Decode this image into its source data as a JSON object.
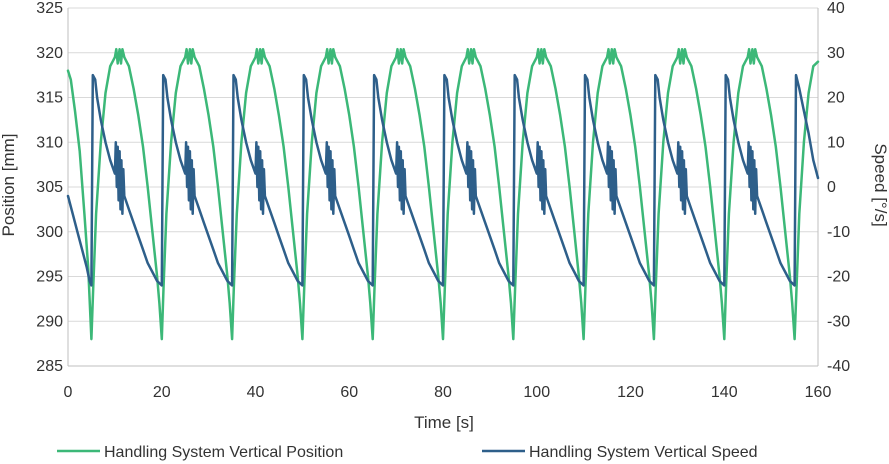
{
  "chart_data": {
    "type": "line",
    "title": "",
    "xlabel": "Time [s]",
    "ylabel_left": "Position [mm]",
    "ylabel_right": "Speed [°/s]",
    "xlim": [
      0,
      160
    ],
    "ylim_left": [
      285,
      325
    ],
    "ylim_right": [
      -40,
      40
    ],
    "x_ticks": [
      "0",
      "20",
      "40",
      "60",
      "80",
      "100",
      "120",
      "140",
      "160"
    ],
    "y_left_ticks": [
      "285",
      "290",
      "295",
      "300",
      "305",
      "310",
      "315",
      "320",
      "325"
    ],
    "y_right_ticks": [
      "-40",
      "-30",
      "-20",
      "-10",
      "0",
      "10",
      "20",
      "30",
      "40"
    ],
    "grid": true,
    "legend_position": "bottom",
    "cycle_period": 15,
    "series": [
      {
        "name": "Handling System Vertical Position",
        "axis": "left",
        "color": "#3cb878",
        "cycle_start": 5,
        "cycle_count": 11,
        "cycle_shape": [
          [
            0,
            288
          ],
          [
            0.4,
            294
          ],
          [
            1.0,
            302
          ],
          [
            2.0,
            310
          ],
          [
            3.0,
            315.5
          ],
          [
            4.0,
            318.5
          ],
          [
            5.0,
            319.5
          ],
          [
            5.3,
            320.4
          ],
          [
            5.6,
            318.8
          ],
          [
            6.0,
            320.4
          ],
          [
            6.3,
            318.8
          ],
          [
            6.6,
            320.4
          ],
          [
            7.0,
            319.5
          ],
          [
            8.0,
            318.5
          ],
          [
            9.0,
            316
          ],
          [
            10.0,
            313
          ],
          [
            11.0,
            309.5
          ],
          [
            12.0,
            305
          ],
          [
            13.0,
            300
          ],
          [
            14.0,
            295
          ],
          [
            14.5,
            292
          ],
          [
            15.0,
            288
          ]
        ],
        "lead_in": [
          [
            0,
            318
          ],
          [
            0.6,
            317
          ],
          [
            1.5,
            313.5
          ],
          [
            2.5,
            309
          ],
          [
            3.5,
            302
          ],
          [
            4.3,
            296
          ],
          [
            5,
            288
          ]
        ],
        "tail": [
          [
            155,
            288
          ],
          [
            156,
            302
          ],
          [
            157,
            310
          ],
          [
            158,
            315.5
          ],
          [
            159,
            318.5
          ],
          [
            160,
            319
          ]
        ]
      },
      {
        "name": "Handling System Vertical Speed",
        "axis": "right",
        "color": "#2e5f8a",
        "cycle_start": 5,
        "cycle_count": 11,
        "cycle_shape": [
          [
            0,
            -22
          ],
          [
            0.3,
            25
          ],
          [
            0.8,
            24
          ],
          [
            1.2,
            20
          ],
          [
            2,
            15
          ],
          [
            3,
            10
          ],
          [
            4,
            6
          ],
          [
            5,
            3
          ],
          [
            5.2,
            10
          ],
          [
            5.4,
            0
          ],
          [
            5.6,
            9
          ],
          [
            5.8,
            -3
          ],
          [
            6.0,
            8
          ],
          [
            6.2,
            -5
          ],
          [
            6.4,
            6
          ],
          [
            6.6,
            -6
          ],
          [
            6.8,
            4
          ],
          [
            7,
            -2
          ],
          [
            8,
            -5
          ],
          [
            9,
            -8
          ],
          [
            10,
            -11
          ],
          [
            11,
            -14
          ],
          [
            12,
            -17
          ],
          [
            13,
            -19
          ],
          [
            14,
            -21
          ],
          [
            15,
            -22
          ]
        ],
        "lead_in": [
          [
            0,
            -2
          ],
          [
            1,
            -6
          ],
          [
            2,
            -10
          ],
          [
            3,
            -14
          ],
          [
            4,
            -18
          ],
          [
            4.6,
            -21
          ],
          [
            5,
            -22
          ]
        ],
        "tail": [
          [
            155,
            -22
          ],
          [
            155.3,
            25
          ],
          [
            156,
            22
          ],
          [
            157,
            17
          ],
          [
            158,
            12
          ],
          [
            159,
            6
          ],
          [
            160,
            2
          ]
        ]
      }
    ]
  }
}
